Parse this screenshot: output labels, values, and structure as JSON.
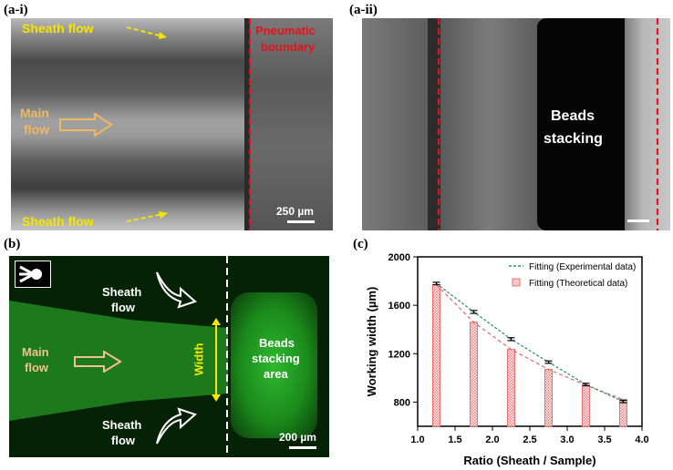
{
  "labels": {
    "a_i": "(a-i)",
    "a_ii": "(a-ii)",
    "b": "(b)",
    "c": "(c)"
  },
  "panel_ai": {
    "sheath_flow_top": "Sheath flow",
    "sheath_flow_bottom": "Sheath flow",
    "main_flow_line1": "Main",
    "main_flow_line2": "flow",
    "pneumatic_line1": "Pneumatic",
    "pneumatic_line2": "boundary",
    "scale": "250 µm",
    "colors": {
      "yellow": "#f4e600",
      "orange": "#f0b860",
      "red": "#e8101a"
    }
  },
  "panel_aii": {
    "beads_line1": "Beads",
    "beads_line2": "stacking"
  },
  "panel_b": {
    "sheath_top_line1": "Sheath",
    "sheath_top_line2": "flow",
    "sheath_bottom_line1": "Sheath",
    "sheath_bottom_line2": "flow",
    "main_line1": "Main",
    "main_line2": "flow",
    "width_label": "Width",
    "beads_line1": "Beads",
    "beads_line2": "stacking",
    "beads_line3": "area",
    "scale": "200 µm",
    "colors": {
      "green": "#1fa020",
      "peach": "#f5c08a",
      "yellow": "#f4e600"
    }
  },
  "chart_data": {
    "type": "bar",
    "xlabel": "Ratio (Sheath / Sample)",
    "ylabel": "Working width (µm)",
    "xlim": [
      1.0,
      4.0
    ],
    "ylim": [
      600,
      2000
    ],
    "xticks": [
      "1.0",
      "1.5",
      "2.0",
      "2.5",
      "3.0",
      "3.5",
      "4.0"
    ],
    "yticks": [
      "800",
      "1200",
      "1600",
      "2000"
    ],
    "x": [
      1.25,
      1.75,
      2.25,
      2.75,
      3.25,
      3.75
    ],
    "bars": [
      1770,
      1460,
      1235,
      1070,
      940,
      820
    ],
    "experimental": [
      1780,
      1545,
      1320,
      1130,
      945,
      805
    ],
    "errors": [
      10,
      12,
      12,
      10,
      10,
      10
    ],
    "legend": [
      "Fitting (Experimental data)",
      "Fitting (Theoretical data)"
    ],
    "legend_position": "top-right",
    "colors": {
      "experimental_line": "#2e8b6f",
      "theoretical_line": "#e06a6a",
      "bar": "#e87070"
    }
  }
}
